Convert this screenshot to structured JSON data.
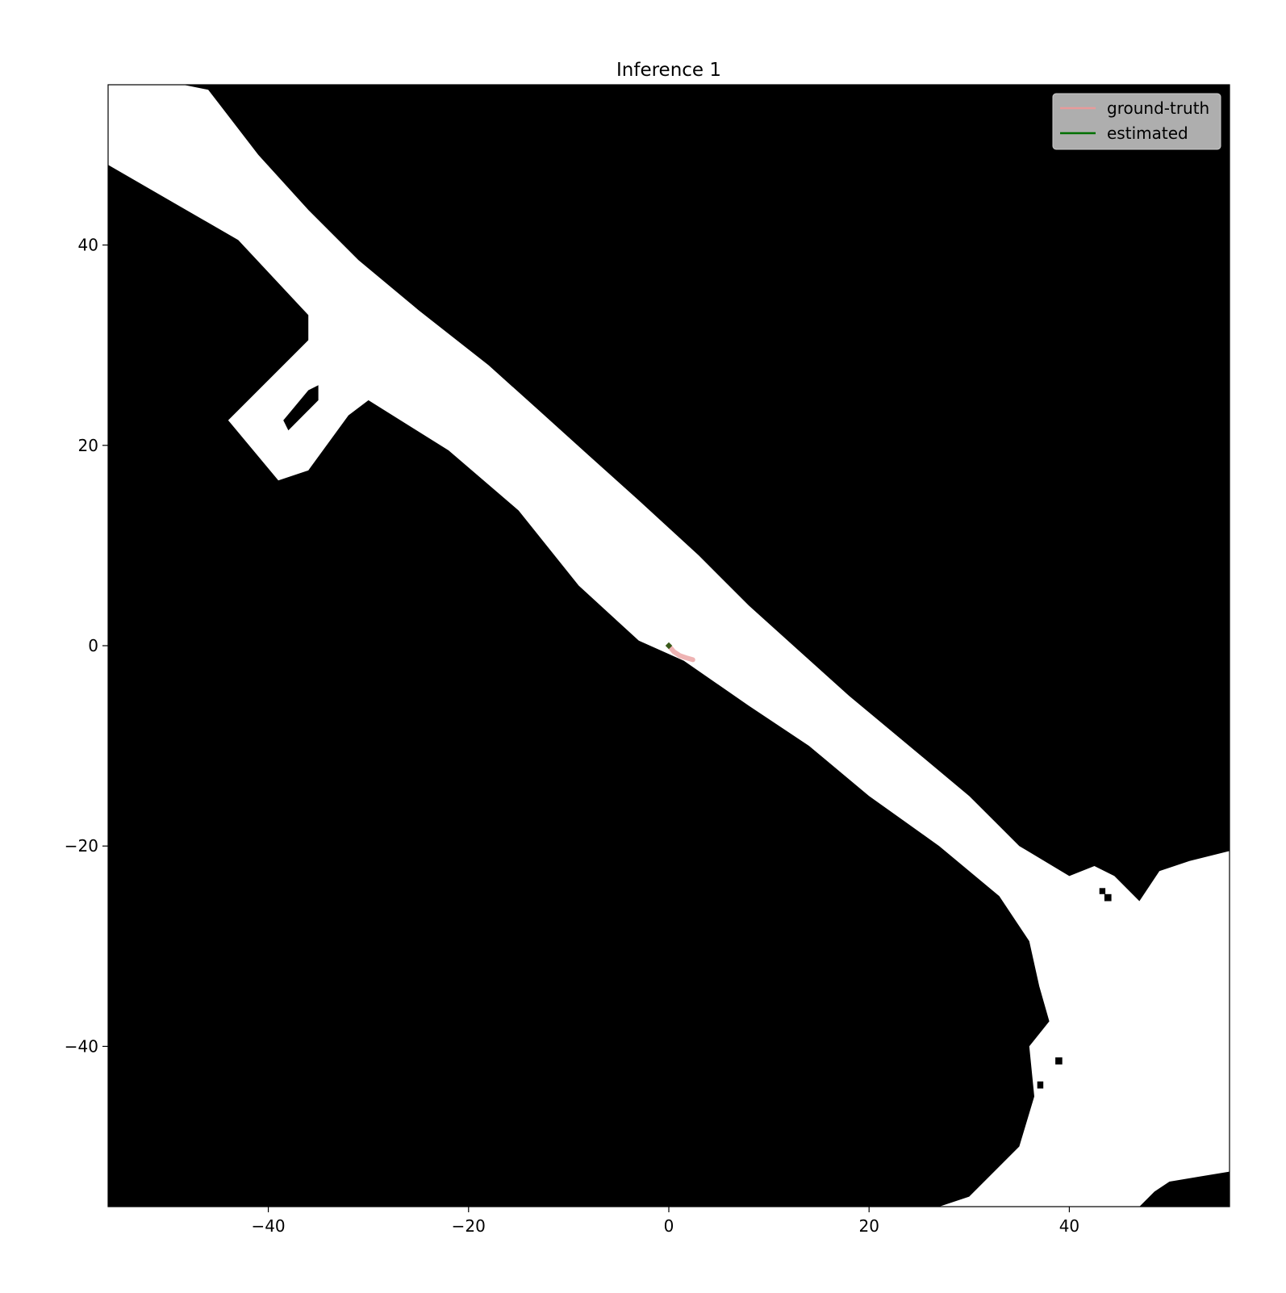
{
  "chart_data": {
    "type": "line",
    "title": "Inference 1",
    "xlabel": "",
    "ylabel": "",
    "xlim": [
      -56,
      56
    ],
    "ylim": [
      -56,
      56
    ],
    "x_ticks": [
      -40,
      -20,
      0,
      20,
      40
    ],
    "y_ticks": [
      40,
      20,
      0,
      -20,
      -40
    ],
    "x_tick_labels": [
      "−40",
      "−20",
      "0",
      "20",
      "40"
    ],
    "y_tick_labels": [
      "40",
      "20",
      "0",
      "−20",
      "−40"
    ],
    "grid": false,
    "legend_position": "top-right",
    "background_map": {
      "description_colors": {
        "occupied": "#000000",
        "free": "#ffffff"
      },
      "free_regions": [
        {
          "name": "main-corridor",
          "polygon": [
            [
              -48.5,
              56
            ],
            [
              -56,
              56
            ],
            [
              -56,
              48
            ],
            [
              -43,
              40.5
            ],
            [
              -36,
              33
            ],
            [
              -36,
              30.5
            ],
            [
              -44,
              22.5
            ],
            [
              -39,
              16.5
            ],
            [
              -36,
              17.5
            ],
            [
              -32,
              23
            ],
            [
              -30,
              24.5
            ],
            [
              -22,
              19.5
            ],
            [
              -15,
              13.5
            ],
            [
              -9,
              6
            ],
            [
              -3,
              0.5
            ],
            [
              1.5,
              -1.5
            ],
            [
              8,
              -6
            ],
            [
              14,
              -10
            ],
            [
              20,
              -15
            ],
            [
              27,
              -20
            ],
            [
              33,
              -25
            ],
            [
              36,
              -29.5
            ],
            [
              37,
              -34
            ],
            [
              38,
              -37.5
            ],
            [
              36,
              -40
            ],
            [
              36.5,
              -45
            ],
            [
              35,
              -50
            ],
            [
              30,
              -55
            ],
            [
              27,
              -56
            ],
            [
              56,
              -56
            ],
            [
              56,
              -20.5
            ],
            [
              52,
              -21.5
            ],
            [
              49,
              -22.5
            ],
            [
              47,
              -25.5
            ],
            [
              44.5,
              -23
            ],
            [
              42.5,
              -22
            ],
            [
              40,
              -23
            ],
            [
              35,
              -20
            ],
            [
              30,
              -15
            ],
            [
              24,
              -10
            ],
            [
              18,
              -5
            ],
            [
              13,
              -0.5
            ],
            [
              8,
              4
            ],
            [
              3,
              9
            ],
            [
              -3,
              14.5
            ],
            [
              -8,
              19
            ],
            [
              -13,
              23.5
            ],
            [
              -18,
              28
            ],
            [
              -25,
              33.5
            ],
            [
              -31,
              38.5
            ],
            [
              -36,
              43.5
            ],
            [
              -41,
              49
            ],
            [
              -46,
              55.5
            ]
          ]
        },
        {
          "name": "side-room-opening",
          "polygon": [
            [
              -36,
              30.5
            ],
            [
              -44,
              22.5
            ],
            [
              -38.5,
              17
            ],
            [
              -36,
              17.5
            ],
            [
              -33.5,
              22
            ],
            [
              -31.5,
              24.5
            ],
            [
              -34,
              30.5
            ]
          ]
        }
      ],
      "occupied_islands": [
        {
          "name": "room-divider",
          "polygon": [
            [
              -38.5,
              22.5
            ],
            [
              -38,
              21.5
            ],
            [
              -35,
              24.5
            ],
            [
              -35,
              26
            ],
            [
              -36,
              25.5
            ]
          ]
        },
        {
          "name": "obstacle-1",
          "polygon": [
            [
              43.5,
              -24.8
            ],
            [
              44.2,
              -24.8
            ],
            [
              44.2,
              -25.5
            ],
            [
              43.5,
              -25.5
            ]
          ]
        },
        {
          "name": "obstacle-2",
          "polygon": [
            [
              43,
              -24.2
            ],
            [
              43.6,
              -24.2
            ],
            [
              43.6,
              -24.8
            ],
            [
              43,
              -24.8
            ]
          ]
        },
        {
          "name": "obstacle-3",
          "polygon": [
            [
              35.8,
              -32.1
            ],
            [
              36.5,
              -32.1
            ],
            [
              36.5,
              -32.8
            ],
            [
              35.8,
              -32.8
            ]
          ]
        },
        {
          "name": "obstacle-4",
          "polygon": [
            [
              38.6,
              -41.1
            ],
            [
              39.3,
              -41.1
            ],
            [
              39.3,
              -41.8
            ],
            [
              38.6,
              -41.8
            ]
          ]
        },
        {
          "name": "obstacle-5",
          "polygon": [
            [
              36.8,
              -43.5
            ],
            [
              37.4,
              -43.5
            ],
            [
              37.4,
              -44.2
            ],
            [
              36.8,
              -44.2
            ]
          ]
        },
        {
          "name": "bottom-right-block",
          "polygon": [
            [
              47,
              -56
            ],
            [
              48.5,
              -54.5
            ],
            [
              50,
              -53.5
            ],
            [
              53,
              -53
            ],
            [
              56,
              -52.5
            ],
            [
              56,
              -56
            ]
          ]
        }
      ]
    },
    "series": [
      {
        "name": "ground-truth",
        "color": "#e89a9a",
        "x": [
          0,
          0.5,
          1.1,
          1.7,
          2.4
        ],
        "y": [
          0,
          -0.6,
          -1.0,
          -1.2,
          -1.4
        ]
      },
      {
        "name": "estimated",
        "color": "#007000",
        "x": [
          0,
          0.1
        ],
        "y": [
          0,
          0
        ]
      }
    ]
  }
}
